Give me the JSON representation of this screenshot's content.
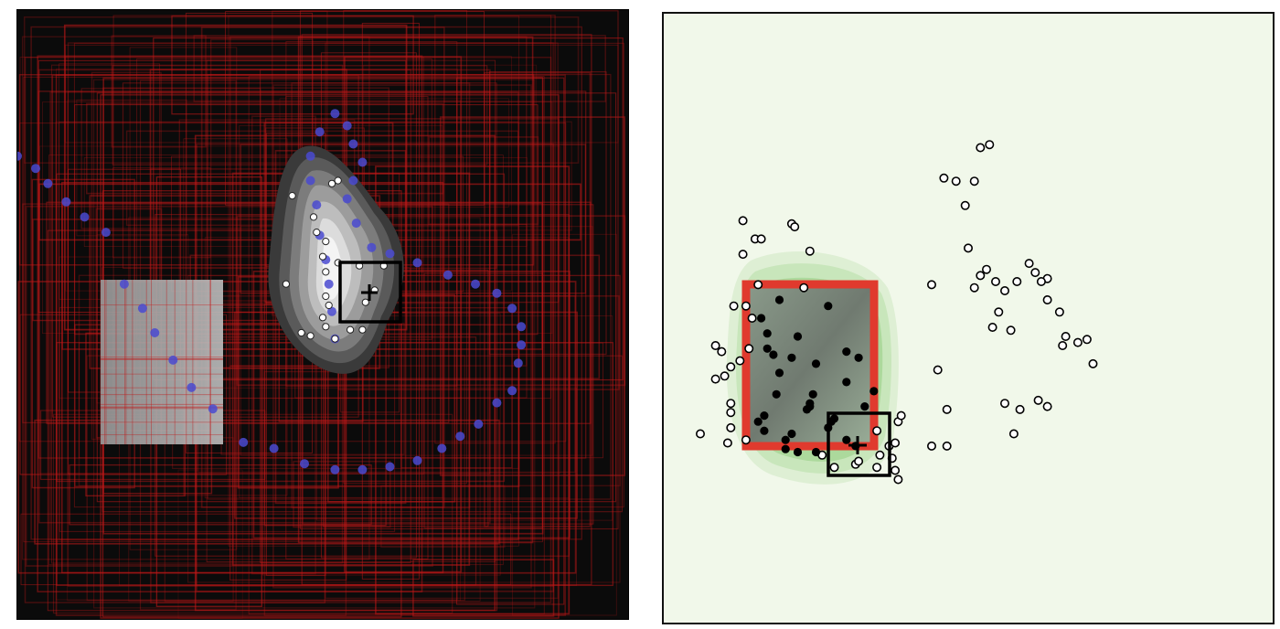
{
  "colors": {
    "left_background": "#0b0b0b",
    "left_lines": "#c01818",
    "left_path_dots": "#4a4ad0",
    "left_sample_dots": "#ffffff",
    "left_density": "#ffffff",
    "right_background": "#f1f8ea",
    "right_density": "#7fc06a",
    "right_region_outline": "#e03a2e",
    "right_inside_points": "#000000",
    "right_outside_points": "#ffffff",
    "marker": "#000000"
  },
  "chart_data": [
    {
      "type": "scatter",
      "panel": "left",
      "xlim": [
        0,
        100
      ],
      "ylim": [
        0,
        100
      ],
      "grid": false,
      "series": [
        {
          "values": [
            [
              0,
              76
            ],
            [
              3,
              74
            ],
            [
              5,
              71.5
            ],
            [
              8,
              68.5
            ],
            [
              11,
              66
            ],
            [
              14.5,
              63.5
            ],
            [
              17.5,
              55
            ],
            [
              20.5,
              51
            ],
            [
              22.5,
              47
            ],
            [
              25.5,
              42.5
            ],
            [
              28.5,
              38
            ],
            [
              32,
              34.5
            ],
            [
              37,
              29
            ],
            [
              42,
              28
            ],
            [
              47,
              25.5
            ],
            [
              52,
              24.5
            ],
            [
              56.5,
              24.5
            ],
            [
              61,
              25
            ],
            [
              65.5,
              26
            ],
            [
              69.5,
              28
            ],
            [
              72.5,
              30
            ],
            [
              75.5,
              32
            ],
            [
              78.5,
              35.5
            ],
            [
              81,
              37.5
            ],
            [
              82,
              42
            ],
            [
              82.5,
              45
            ],
            [
              82.5,
              48
            ],
            [
              81,
              51
            ],
            [
              78.5,
              53.5
            ],
            [
              75,
              55
            ],
            [
              70.5,
              56.5
            ],
            [
              65.5,
              58.5
            ],
            [
              61,
              60
            ],
            [
              58,
              61
            ],
            [
              55.5,
              65
            ],
            [
              54,
              69
            ],
            [
              55,
              72
            ],
            [
              56.5,
              75
            ],
            [
              55,
              78
            ],
            [
              54,
              81
            ],
            [
              52,
              83
            ],
            [
              49.5,
              80
            ],
            [
              48,
              76
            ],
            [
              48,
              72
            ],
            [
              49,
              68
            ],
            [
              49.5,
              63
            ],
            [
              50.5,
              59
            ],
            [
              51,
              55
            ],
            [
              51.5,
              50.5
            ],
            [
              52,
              46
            ]
          ]
        },
        {
          "values": [
            [
              52.5,
              72
            ],
            [
              51.5,
              71.5
            ],
            [
              45,
              69.5
            ],
            [
              48.5,
              66
            ],
            [
              49,
              63.5
            ],
            [
              50.5,
              62
            ],
            [
              50,
              59.5
            ],
            [
              50.5,
              57
            ],
            [
              52.5,
              58.5
            ],
            [
              56,
              58
            ],
            [
              60,
              58
            ],
            [
              57,
              52
            ],
            [
              50.5,
              53
            ],
            [
              51,
              51.5
            ],
            [
              50,
              49.5
            ],
            [
              50.5,
              48
            ],
            [
              54.5,
              47.5
            ],
            [
              52,
              46
            ],
            [
              48,
              46.5
            ],
            [
              44,
              55
            ],
            [
              46.5,
              47
            ],
            [
              56.5,
              47.5
            ],
            [
              58.5,
              54
            ]
          ]
        }
      ]
    },
    {
      "type": "scatter",
      "panel": "right",
      "xlim": [
        0,
        100
      ],
      "ylim": [
        0,
        100
      ],
      "grid": false,
      "series": [
        {
          "values": [
            [
              19,
              53
            ],
            [
              22,
              47
            ],
            [
              27,
              52
            ],
            [
              16,
              50
            ],
            [
              17,
              47.5
            ],
            [
              21,
              43.5
            ],
            [
              19,
              41
            ],
            [
              25,
              42.5
            ],
            [
              30,
              44.5
            ],
            [
              24.5,
              37.5
            ],
            [
              24,
              36
            ],
            [
              23.5,
              35
            ],
            [
              32,
              43.5
            ],
            [
              30,
              39.5
            ],
            [
              17,
              45
            ],
            [
              18,
              44
            ],
            [
              18.5,
              37.5
            ],
            [
              24,
              35.5
            ],
            [
              28,
              33.5
            ],
            [
              20,
              30
            ],
            [
              16.5,
              34
            ],
            [
              15.5,
              33
            ],
            [
              16.5,
              31.5
            ],
            [
              21,
              31
            ],
            [
              27,
              32
            ],
            [
              25,
              28
            ],
            [
              22,
              28
            ],
            [
              20,
              28.5
            ],
            [
              31.5,
              29
            ],
            [
              30,
              30
            ],
            [
              33,
              35.5
            ],
            [
              34.5,
              38
            ],
            [
              27.5,
              33
            ]
          ]
        },
        {
          "values": [
            [
              13,
              66
            ],
            [
              13,
              60.5
            ],
            [
              15,
              63
            ],
            [
              16,
              63
            ],
            [
              21,
              65.5
            ],
            [
              21.5,
              65
            ],
            [
              24,
              61
            ],
            [
              23,
              55
            ],
            [
              11.5,
              52
            ],
            [
              13.5,
              52
            ],
            [
              15.5,
              55.5
            ],
            [
              14.5,
              50
            ],
            [
              14,
              45
            ],
            [
              12.5,
              43
            ],
            [
              11,
              42
            ],
            [
              8.5,
              45.5
            ],
            [
              9.5,
              44.5
            ],
            [
              8.5,
              40
            ],
            [
              10,
              40.5
            ],
            [
              11,
              36
            ],
            [
              11,
              34.5
            ],
            [
              11,
              32
            ],
            [
              10.5,
              29.5
            ],
            [
              6,
              31
            ],
            [
              13.5,
              30
            ],
            [
              26,
              27.5
            ],
            [
              28,
              25.5
            ],
            [
              31.5,
              26
            ],
            [
              32,
              26.5
            ],
            [
              35,
              25.5
            ],
            [
              35.5,
              27.5
            ],
            [
              37,
              29
            ],
            [
              37.5,
              27
            ],
            [
              38,
              25
            ],
            [
              38.5,
              23.5
            ],
            [
              38,
              29.5
            ],
            [
              38.5,
              33
            ],
            [
              39,
              34
            ],
            [
              35,
              31.5
            ],
            [
              44,
              55.5
            ],
            [
              45,
              41.5
            ],
            [
              46.5,
              29
            ],
            [
              46.5,
              35
            ],
            [
              44,
              29
            ],
            [
              46,
              73
            ],
            [
              51,
              72.5
            ],
            [
              52,
              78
            ],
            [
              53.5,
              78.5
            ],
            [
              48,
              72.5
            ],
            [
              49.5,
              68.5
            ],
            [
              50,
              61.5
            ],
            [
              51,
              55
            ],
            [
              52,
              57
            ],
            [
              54.5,
              56
            ],
            [
              53,
              58
            ],
            [
              55,
              51
            ],
            [
              58,
              56
            ],
            [
              56,
              54.5
            ],
            [
              57,
              48
            ],
            [
              54,
              48.5
            ],
            [
              60,
              59
            ],
            [
              61,
              57.5
            ],
            [
              63,
              56.5
            ],
            [
              62,
              56
            ],
            [
              63,
              53
            ],
            [
              65,
              51
            ],
            [
              66,
              47
            ],
            [
              65.5,
              45.5
            ],
            [
              68,
              46
            ],
            [
              69.5,
              46.5
            ],
            [
              70.5,
              42.5
            ],
            [
              63,
              35.5
            ],
            [
              61.5,
              36.5
            ],
            [
              56,
              36
            ],
            [
              58.5,
              35
            ],
            [
              57.5,
              31
            ]
          ]
        }
      ]
    }
  ]
}
